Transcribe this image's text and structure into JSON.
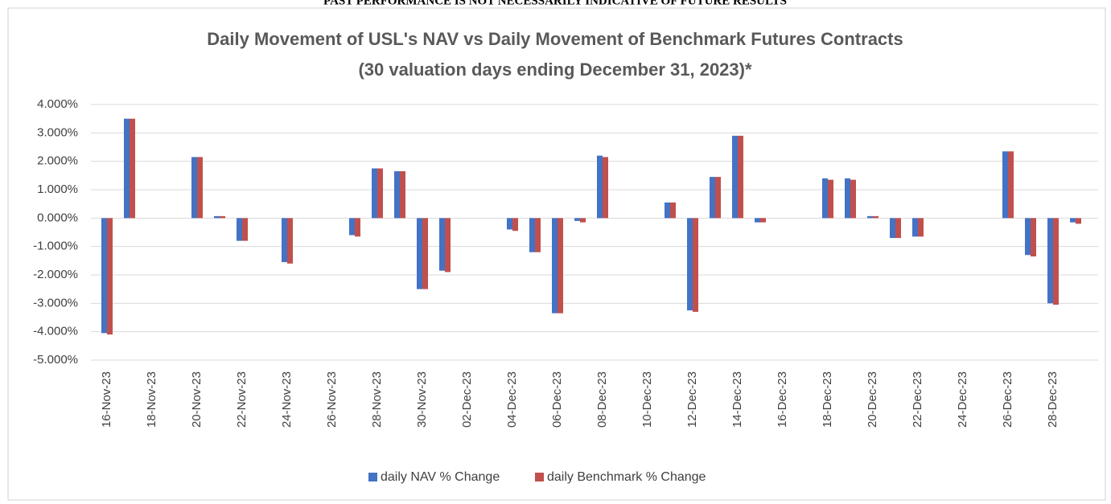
{
  "chart_data": {
    "type": "bar",
    "header": "PAST PERFORMANCE IS NOT NECESSARILY INDICATIVE OF FUTURE RESULTS",
    "title": "Daily Movement of USL's NAV vs Daily Movement of Benchmark Futures Contracts",
    "subtitle": "(30 valuation days ending December 31, 2023)*",
    "categories": [
      "16-Nov-23",
      null,
      "18-Nov-23",
      null,
      "20-Nov-23",
      null,
      "22-Nov-23",
      null,
      "24-Nov-23",
      null,
      "26-Nov-23",
      null,
      "28-Nov-23",
      null,
      "30-Nov-23",
      null,
      "02-Dec-23",
      null,
      "04-Dec-23",
      null,
      "06-Dec-23",
      null,
      "08-Dec-23",
      null,
      "10-Dec-23",
      null,
      "12-Dec-23",
      null,
      "14-Dec-23",
      null,
      "16-Dec-23",
      null,
      "18-Dec-23",
      null,
      "20-Dec-23",
      null,
      "22-Dec-23",
      null,
      "24-Dec-23",
      null,
      "26-Dec-23",
      null,
      "28-Dec-23",
      null
    ],
    "series": [
      {
        "name": "daily NAV % Change",
        "color": "#4472c4",
        "values": [
          -4.05,
          3.5,
          null,
          null,
          2.15,
          0.07,
          -0.8,
          null,
          -1.55,
          null,
          null,
          -0.6,
          1.75,
          1.65,
          -2.5,
          -1.85,
          null,
          null,
          -0.4,
          -1.2,
          -3.35,
          -0.1,
          2.2,
          null,
          null,
          0.55,
          -3.25,
          1.45,
          2.9,
          -0.15,
          null,
          null,
          1.4,
          1.4,
          0.07,
          -0.7,
          -0.65,
          null,
          null,
          null,
          2.35,
          -1.3,
          -3.0,
          -0.15
        ]
      },
      {
        "name": "daily Benchmark % Change",
        "color": "#c0504d",
        "values": [
          -4.1,
          3.5,
          null,
          null,
          2.15,
          0.07,
          -0.8,
          null,
          -1.6,
          null,
          null,
          -0.65,
          1.75,
          1.65,
          -2.5,
          -1.9,
          null,
          null,
          -0.45,
          -1.2,
          -3.35,
          -0.15,
          2.15,
          null,
          null,
          0.55,
          -3.3,
          1.45,
          2.9,
          -0.15,
          null,
          null,
          1.35,
          1.35,
          0.07,
          -0.7,
          -0.65,
          null,
          null,
          null,
          2.35,
          -1.35,
          -3.05,
          -0.2
        ]
      }
    ],
    "ylim": [
      -5,
      4
    ],
    "yticks": [
      {
        "value": -5,
        "label": "-5.000%"
      },
      {
        "value": -4,
        "label": "-4.000%"
      },
      {
        "value": -3,
        "label": "-3.000%"
      },
      {
        "value": -2,
        "label": "-2.000%"
      },
      {
        "value": -1,
        "label": "-1.000%"
      },
      {
        "value": 0,
        "label": "0.000%"
      },
      {
        "value": 1,
        "label": "1.000%"
      },
      {
        "value": 2,
        "label": "2.000%"
      },
      {
        "value": 3,
        "label": "3.000%"
      },
      {
        "value": 4,
        "label": "4.000%"
      }
    ],
    "grid": true,
    "legend": "bottom"
  }
}
